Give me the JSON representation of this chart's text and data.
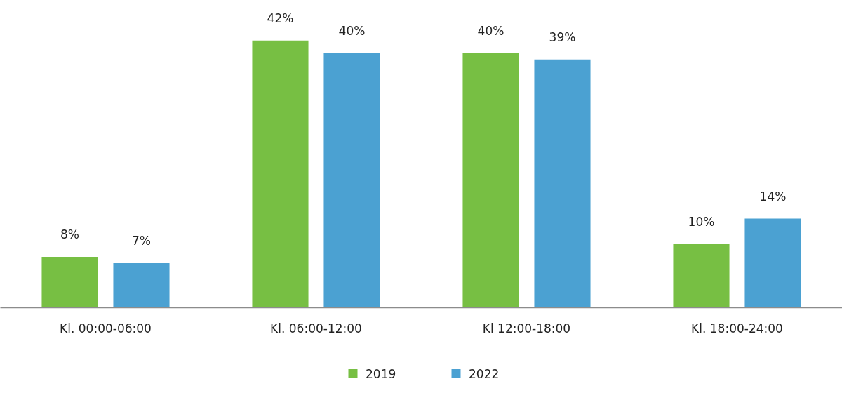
{
  "chart_data": {
    "type": "bar",
    "categories": [
      "Kl. 00:00-06:00",
      "Kl. 06:00-12:00",
      "Kl 12:00-18:00",
      "Kl. 18:00-24:00"
    ],
    "series": [
      {
        "name": "2019",
        "color": "#77bf43",
        "values": [
          8,
          42,
          40,
          10
        ],
        "value_labels": [
          "8%",
          "42%",
          "40%",
          "10%"
        ]
      },
      {
        "name": "2022",
        "color": "#4ba1d2",
        "values": [
          7,
          40,
          39,
          14
        ],
        "value_labels": [
          "7%",
          "40%",
          "39%",
          "14%"
        ]
      }
    ],
    "legend": "bottom",
    "grid": false,
    "tick_labels": "x"
  }
}
